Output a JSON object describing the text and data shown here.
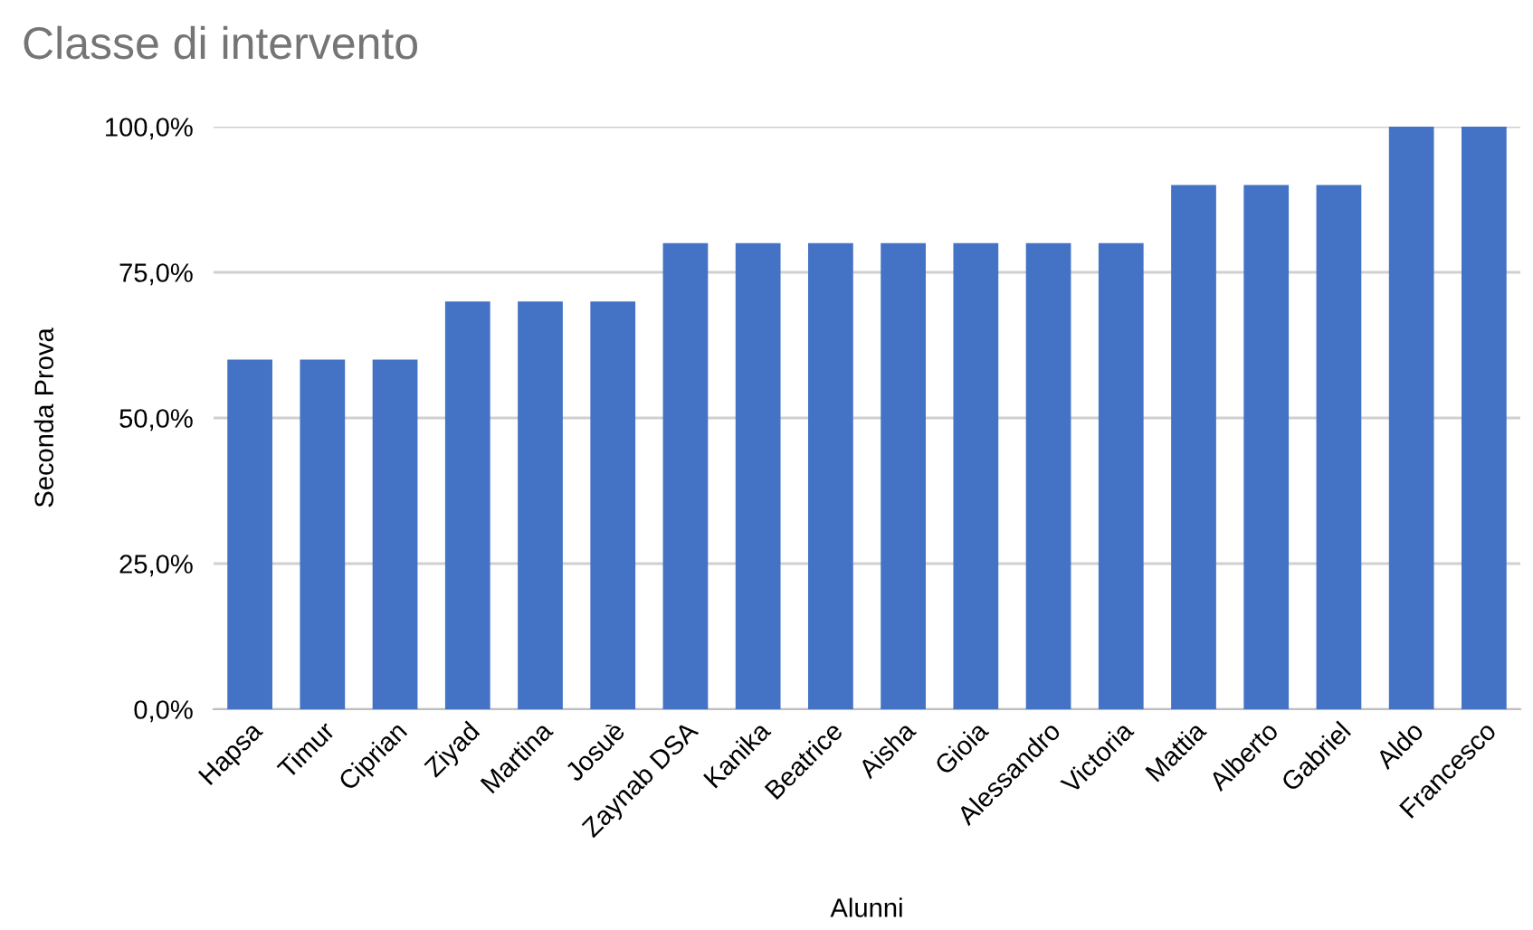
{
  "chart_data": {
    "type": "bar",
    "title": "Classe di intervento",
    "xlabel": "Alunni",
    "ylabel": "Seconda Prova",
    "categories": [
      "Hapsa",
      "Timur",
      "Ciprian",
      "Ziyad",
      "Martina",
      "Josuè",
      "Zaynab DSA",
      "Kanika",
      "Beatrice",
      "Aisha",
      "Gioia",
      "Alessandro",
      "Victoria",
      "Mattia",
      "Alberto",
      "Gabriel",
      "Aldo",
      "Francesco"
    ],
    "values": [
      60,
      60,
      60,
      70,
      70,
      70,
      80,
      80,
      80,
      80,
      80,
      80,
      80,
      90,
      90,
      90,
      100,
      100
    ],
    "color": "#4472c4",
    "ylim": [
      0,
      100
    ],
    "yticks": [
      {
        "value": 0,
        "label": "0,0%"
      },
      {
        "value": 25,
        "label": "25,0%"
      },
      {
        "value": 50,
        "label": "50,0%"
      },
      {
        "value": 75,
        "label": "75,0%"
      },
      {
        "value": 100,
        "label": "100,0%"
      }
    ],
    "grid": "y",
    "legend": false
  }
}
